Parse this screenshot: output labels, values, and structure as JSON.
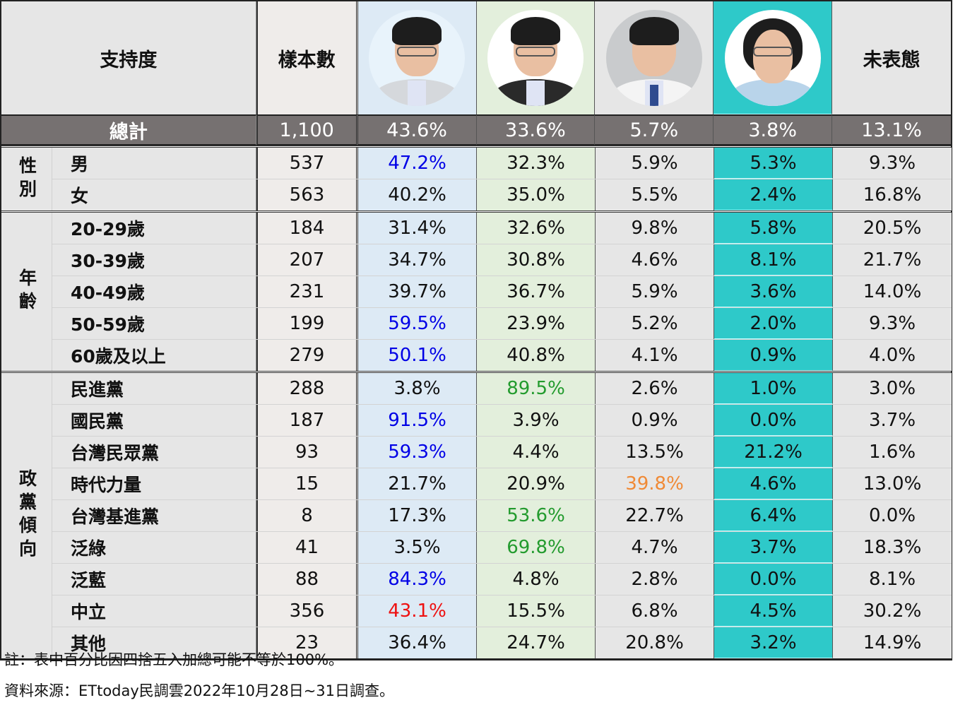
{
  "header": {
    "support_label": "支持度",
    "sample_label": "樣本數",
    "candidates": [
      {
        "avatar": "candidate-1-photo",
        "bg": "#ddeaf5"
      },
      {
        "avatar": "candidate-2-photo",
        "bg": "#e3efdc"
      },
      {
        "avatar": "candidate-3-photo",
        "bg": "#e6e6e6"
      },
      {
        "avatar": "candidate-4-photo",
        "bg": "#2ec9c9"
      }
    ],
    "undecided_label": "未表態"
  },
  "total": {
    "label": "總計",
    "n": "1,100",
    "values": [
      "43.6%",
      "33.6%",
      "5.7%",
      "3.8%",
      "13.1%"
    ]
  },
  "groups": [
    {
      "label": "性別",
      "rows": [
        {
          "label": "男",
          "n": "537",
          "values": [
            "47.2%",
            "32.3%",
            "5.9%",
            "5.3%",
            "9.3%"
          ],
          "highlight": {
            "0": "blue"
          }
        },
        {
          "label": "女",
          "n": "563",
          "values": [
            "40.2%",
            "35.0%",
            "5.5%",
            "2.4%",
            "16.8%"
          ]
        }
      ]
    },
    {
      "label": "年齡",
      "rows": [
        {
          "label": "20-29歲",
          "n": "184",
          "values": [
            "31.4%",
            "32.6%",
            "9.8%",
            "5.8%",
            "20.5%"
          ]
        },
        {
          "label": "30-39歲",
          "n": "207",
          "values": [
            "34.7%",
            "30.8%",
            "4.6%",
            "8.1%",
            "21.7%"
          ]
        },
        {
          "label": "40-49歲",
          "n": "231",
          "values": [
            "39.7%",
            "36.7%",
            "5.9%",
            "3.6%",
            "14.0%"
          ]
        },
        {
          "label": "50-59歲",
          "n": "199",
          "values": [
            "59.5%",
            "23.9%",
            "5.2%",
            "2.0%",
            "9.3%"
          ],
          "highlight": {
            "0": "blue"
          }
        },
        {
          "label": "60歲及以上",
          "n": "279",
          "values": [
            "50.1%",
            "40.8%",
            "4.1%",
            "0.9%",
            "4.0%"
          ],
          "highlight": {
            "0": "blue"
          }
        }
      ]
    },
    {
      "label": "政黨傾向",
      "rows": [
        {
          "label": "民進黨",
          "n": "288",
          "values": [
            "3.8%",
            "89.5%",
            "2.6%",
            "1.0%",
            "3.0%"
          ],
          "highlight": {
            "1": "green"
          }
        },
        {
          "label": "國民黨",
          "n": "187",
          "values": [
            "91.5%",
            "3.9%",
            "0.9%",
            "0.0%",
            "3.7%"
          ],
          "highlight": {
            "0": "blue"
          }
        },
        {
          "label": "台灣民眾黨",
          "n": "93",
          "values": [
            "59.3%",
            "4.4%",
            "13.5%",
            "21.2%",
            "1.6%"
          ],
          "highlight": {
            "0": "blue"
          }
        },
        {
          "label": "時代力量",
          "n": "15",
          "values": [
            "21.7%",
            "20.9%",
            "39.8%",
            "4.6%",
            "13.0%"
          ],
          "highlight": {
            "2": "orange"
          }
        },
        {
          "label": "台灣基進黨",
          "n": "8",
          "values": [
            "17.3%",
            "53.6%",
            "22.7%",
            "6.4%",
            "0.0%"
          ],
          "highlight": {
            "1": "green"
          }
        },
        {
          "label": "泛綠",
          "n": "41",
          "values": [
            "3.5%",
            "69.8%",
            "4.7%",
            "3.7%",
            "18.3%"
          ],
          "highlight": {
            "1": "green"
          }
        },
        {
          "label": "泛藍",
          "n": "88",
          "values": [
            "84.3%",
            "4.8%",
            "2.8%",
            "0.0%",
            "8.1%"
          ],
          "highlight": {
            "0": "blue"
          }
        },
        {
          "label": "中立",
          "n": "356",
          "values": [
            "43.1%",
            "15.5%",
            "6.8%",
            "4.5%",
            "30.2%"
          ],
          "highlight": {
            "0": "red"
          }
        },
        {
          "label": "其他",
          "n": "23",
          "values": [
            "36.4%",
            "24.7%",
            "20.8%",
            "3.2%",
            "14.9%"
          ]
        }
      ]
    }
  ],
  "highlight_colors": {
    "blue": "#0000e6",
    "green": "#239b2e",
    "orange": "#f08a36",
    "red": "#ee1111"
  },
  "notes": {
    "note": "註：表中百分比因四捨五入加總可能不等於100%。",
    "source": "資料來源：ETtoday民調雲2022年10月28日~31日調查。"
  }
}
